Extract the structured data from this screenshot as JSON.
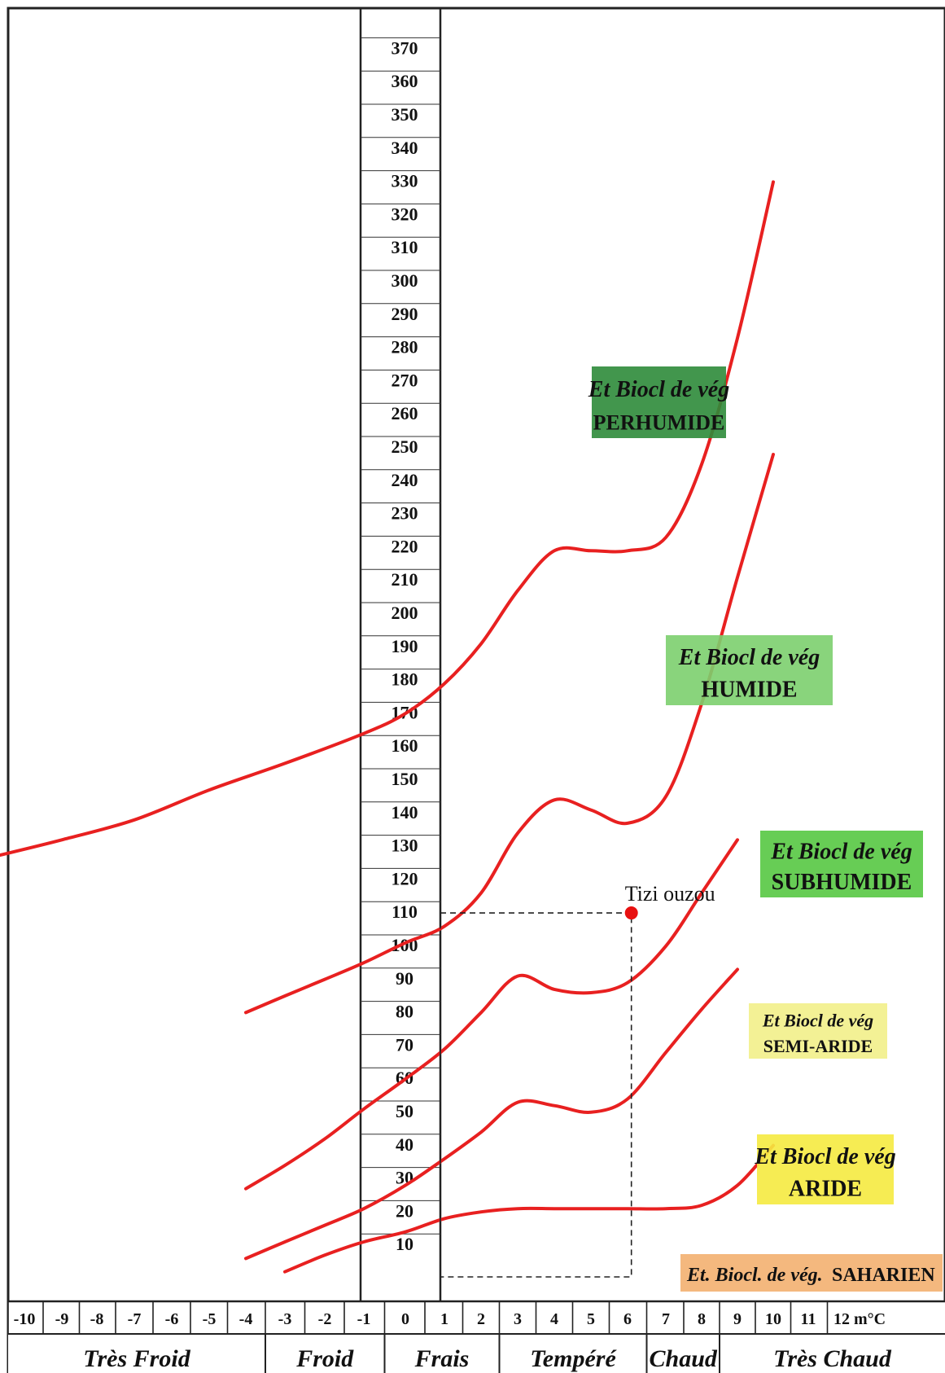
{
  "chart_data": {
    "type": "line",
    "title": "",
    "xlabel": "m°C",
    "ylabel": "",
    "xlim": [
      -10.5,
      12.5
    ],
    "ylim": [
      0,
      380
    ],
    "x_ticks": [
      "-10",
      "-9",
      "-8",
      "-7",
      "-6",
      "-5",
      "-4",
      "-3",
      "-2",
      "-1",
      "0",
      "1",
      "2",
      "3",
      "4",
      "5",
      "6",
      "7",
      "8",
      "9",
      "10",
      "11",
      "12"
    ],
    "x_unit": "m°C",
    "y_ticks": [
      "370",
      "360",
      "350",
      "340",
      "330",
      "320",
      "310",
      "300",
      "290",
      "280",
      "270",
      "260",
      "250",
      "240",
      "230",
      "220",
      "210",
      "200",
      "190",
      "180",
      "170",
      "160",
      "150",
      "140",
      "130",
      "120",
      "110",
      "100",
      "90",
      "80",
      "70",
      "60",
      "50",
      "40",
      "30",
      "20",
      "10"
    ],
    "climate_zones": [
      {
        "label": "Très Froid",
        "from": -10,
        "to": -4
      },
      {
        "label": "Froid",
        "from": -3,
        "to": -1
      },
      {
        "label": "Frais",
        "from": 0,
        "to": 2
      },
      {
        "label": "Tempéré",
        "from": 3,
        "to": 6
      },
      {
        "label": "Chaud",
        "from": 7,
        "to": 8
      },
      {
        "label": "Très Chaud",
        "from": 9,
        "to": 12
      }
    ],
    "bioclimate_labels": [
      {
        "line1": "Et Biocl de vég",
        "line2": "PERHUMIDE",
        "color": "#2e8b3a"
      },
      {
        "line1": "Et Biocl de vég",
        "line2": "HUMIDE",
        "color": "#7ccf6e"
      },
      {
        "line1": "Et Biocl de vég",
        "line2": "SUBHUMIDE",
        "color": "#56c842"
      },
      {
        "line1": "Et Biocl de vég",
        "line2": "SEMI-ARIDE",
        "color": "#f2f08a"
      },
      {
        "line1": "Et Biocl de vég",
        "line2": "ARIDE",
        "color": "#f5ea40"
      },
      {
        "line1": "Et. Biocl. de vég.",
        "line2": "SAHARIEN",
        "color": "#f3b070"
      }
    ],
    "series": [
      {
        "color": "#e82020",
        "points": [
          [
            -10.8,
            129
          ],
          [
            -9,
            134
          ],
          [
            -7,
            140
          ],
          [
            -5,
            149
          ],
          [
            -3,
            157
          ],
          [
            -1,
            166
          ],
          [
            0,
            172
          ],
          [
            1,
            181
          ],
          [
            2,
            193
          ],
          [
            3,
            209
          ],
          [
            4,
            221
          ],
          [
            5,
            221
          ],
          [
            6,
            221
          ],
          [
            7,
            225
          ],
          [
            8,
            247
          ],
          [
            9,
            285
          ],
          [
            10,
            332
          ]
        ]
      },
      {
        "color": "#e82020",
        "points": [
          [
            -4,
            82
          ],
          [
            -3,
            87
          ],
          [
            -2,
            92
          ],
          [
            -1,
            97
          ],
          [
            0,
            103
          ],
          [
            1,
            108
          ],
          [
            2,
            118
          ],
          [
            3,
            136
          ],
          [
            4,
            146
          ],
          [
            5,
            143
          ],
          [
            6,
            139
          ],
          [
            7,
            147
          ],
          [
            8,
            175
          ],
          [
            9,
            213
          ],
          [
            10,
            250
          ]
        ]
      },
      {
        "color": "#e82020",
        "points": [
          [
            -4,
            29
          ],
          [
            -3,
            36
          ],
          [
            -2,
            44
          ],
          [
            -1,
            53
          ],
          [
            0,
            62
          ],
          [
            1,
            71
          ],
          [
            2,
            82
          ],
          [
            3,
            93
          ],
          [
            4,
            89
          ],
          [
            5,
            88
          ],
          [
            6,
            91
          ],
          [
            7,
            102
          ],
          [
            8,
            118
          ],
          [
            9,
            134
          ]
        ]
      },
      {
        "color": "#e82020",
        "points": [
          [
            -4,
            8
          ],
          [
            -3,
            13
          ],
          [
            -2,
            18
          ],
          [
            -1,
            23
          ],
          [
            0,
            30
          ],
          [
            1,
            38
          ],
          [
            2,
            46
          ],
          [
            3,
            55
          ],
          [
            4,
            54
          ],
          [
            5,
            52
          ],
          [
            6,
            56
          ],
          [
            7,
            70
          ],
          [
            8,
            83
          ],
          [
            9,
            95
          ]
        ]
      },
      {
        "color": "#e82020",
        "points": [
          [
            -3,
            4
          ],
          [
            -2,
            9
          ],
          [
            -1,
            13
          ],
          [
            0,
            16
          ],
          [
            1,
            20
          ],
          [
            2,
            22
          ],
          [
            3,
            23
          ],
          [
            4,
            23
          ],
          [
            5,
            23
          ],
          [
            6,
            23
          ],
          [
            7,
            23
          ],
          [
            8,
            24
          ],
          [
            9,
            30
          ],
          [
            10,
            42
          ]
        ]
      }
    ],
    "annotations": [
      {
        "text": "Tizi ouzou",
        "x": 6.1,
        "y": 112,
        "marker_color": "#e81010"
      }
    ],
    "grid": false
  }
}
